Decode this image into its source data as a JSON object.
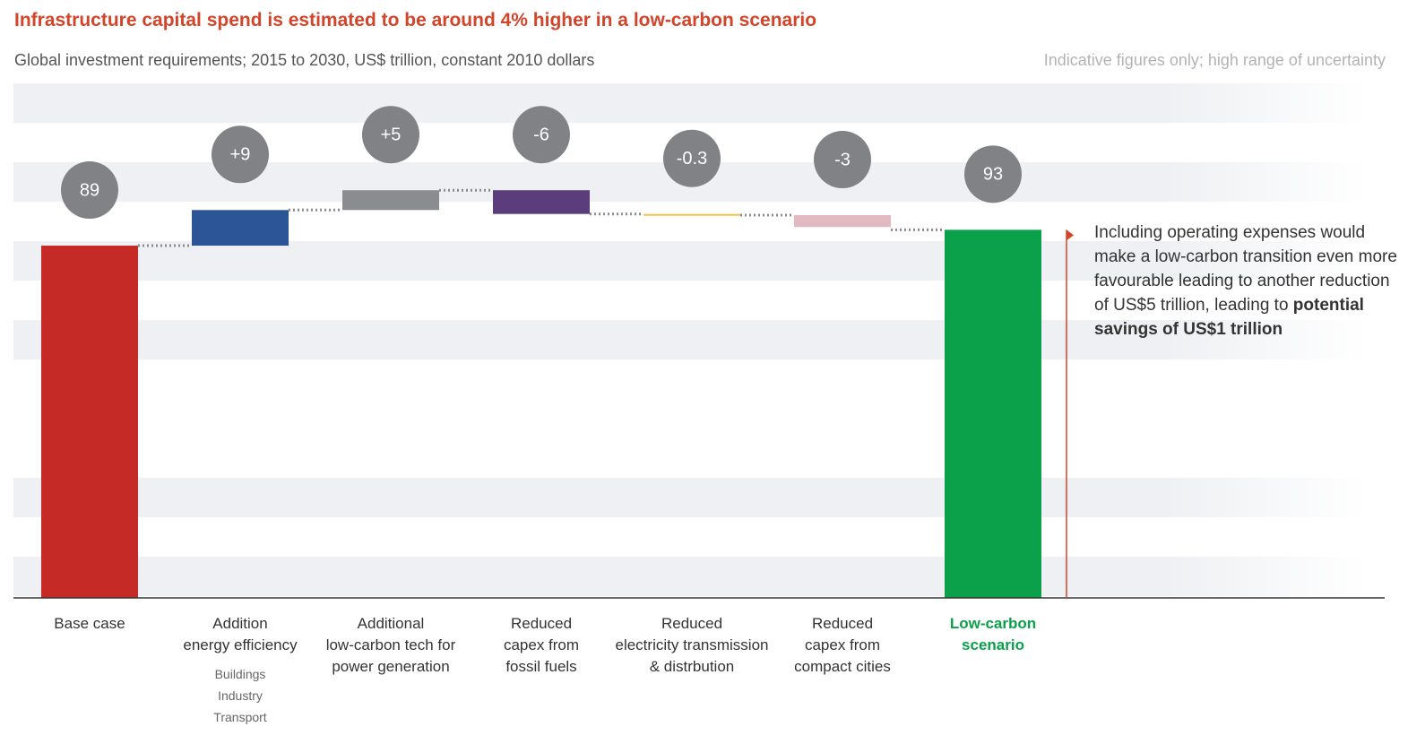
{
  "chart_data": {
    "type": "waterfall",
    "title": "Infrastructure capital spend is estimated to be around 4% higher in a low-carbon scenario",
    "subtitle": "Global investment requirements; 2015 to 2030, US$ trillion, constant 2010 dollars",
    "note": "Indicative figures only; high range of uncertainty",
    "categories": [
      "Base case",
      "Addition\nenergy efficiency",
      "Additional\nlow-carbon tech for\npower generation",
      "Reduced\ncapex from\nfossil fuels",
      "Reduced\nelectricity transmission\n& distrbution",
      "Reduced\ncapex from\ncompact cities",
      "Low-carbon\nscenario"
    ],
    "category_details": [
      null,
      "Buildings\nIndustry\nTransport",
      null,
      null,
      null,
      null,
      null
    ],
    "values": [
      89,
      9,
      5,
      -6,
      -0.3,
      -3,
      93
    ],
    "value_labels": [
      "89",
      "+9",
      "+5",
      "-6",
      "-0.3",
      "-3",
      "93"
    ],
    "measure": [
      "absolute",
      "relative",
      "relative",
      "relative",
      "relative",
      "relative",
      "total"
    ],
    "colors": [
      "#c62a27",
      "#2b5597",
      "#8a8c8f",
      "#5a3d7a",
      "#f2c24a",
      "#e2b9c0",
      "#0ba14b"
    ],
    "ylim": [
      0,
      130
    ],
    "annotation": {
      "text": "Including operating expenses would make a low-carbon transition even more favourable leading to another reduction of US$5 trillion, leading to ",
      "bold": "potential savings of US$1 trillion"
    }
  }
}
